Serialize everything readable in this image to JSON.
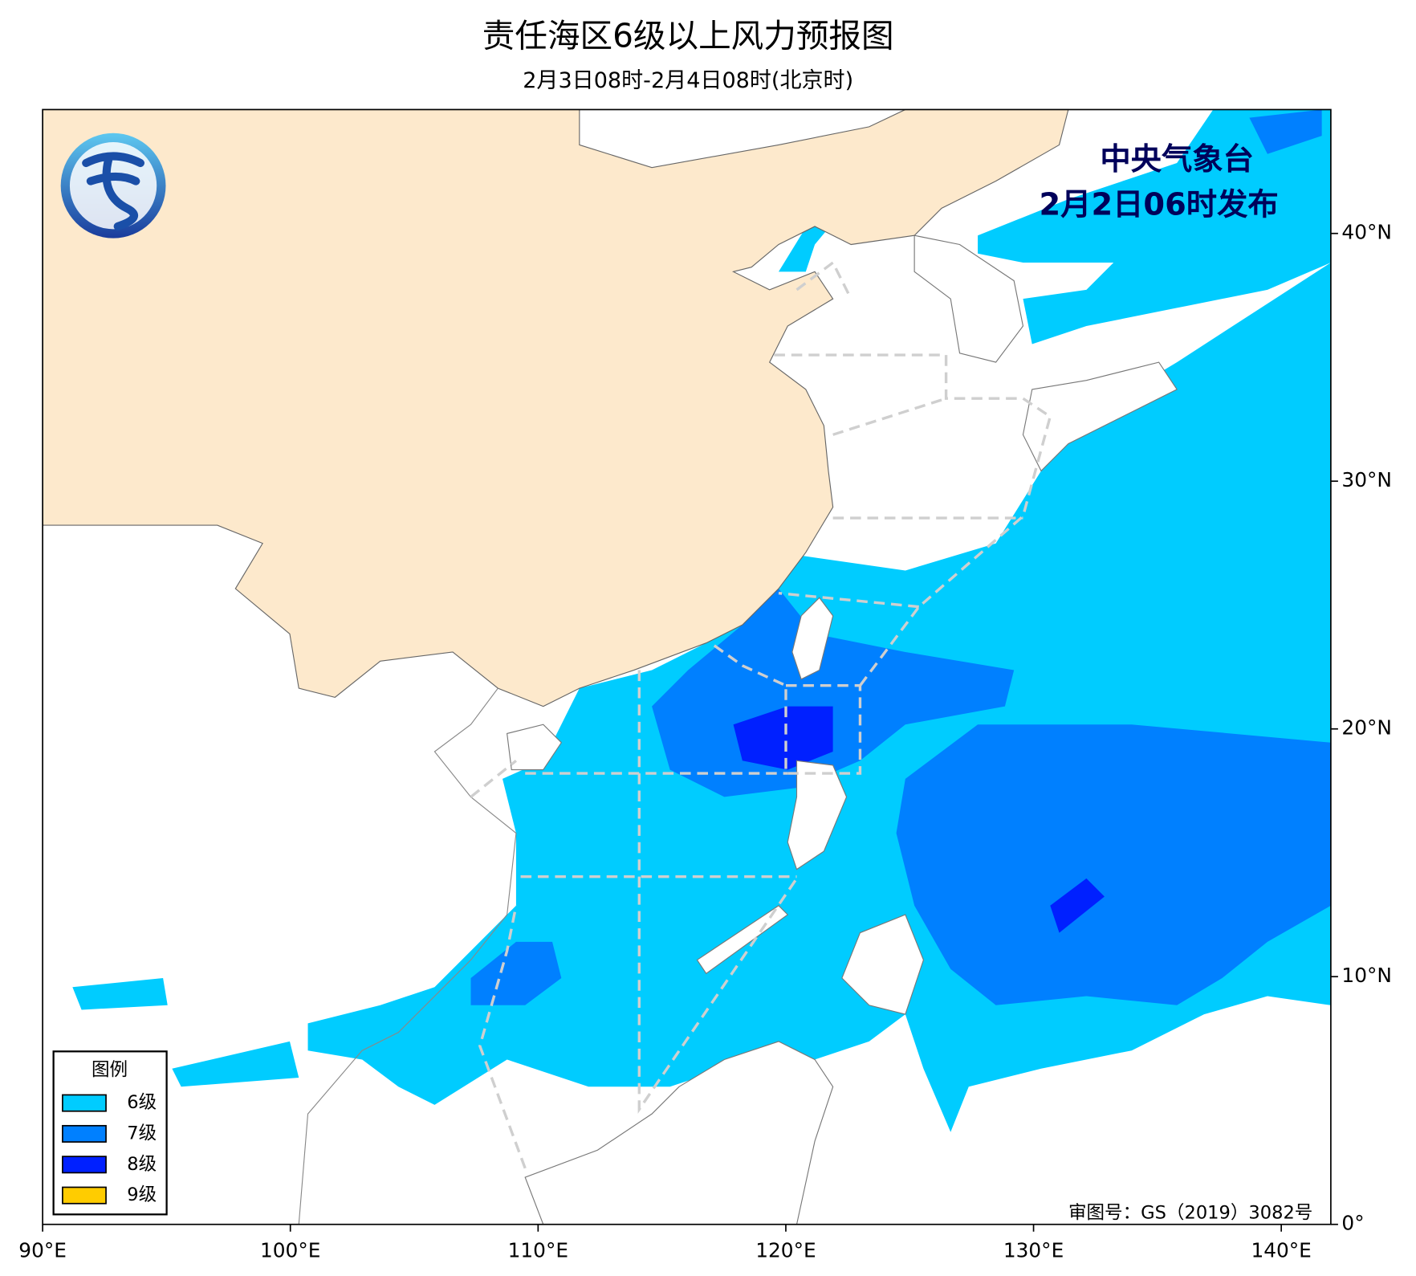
{
  "header": {
    "title": "责任海区6级以上风力预报图",
    "subtitle": "2月3日08时-2月4日08时(北京时)"
  },
  "publisher": {
    "name": "中央气象台",
    "issued": "2月2日06时发布"
  },
  "legend": {
    "title": "图例",
    "items": [
      {
        "name": "6级",
        "color": "#00ccff"
      },
      {
        "name": "7级",
        "color": "#0080ff"
      },
      {
        "name": "8级",
        "color": "#0020ff"
      },
      {
        "name": "9级",
        "color": "#ffcc00"
      }
    ]
  },
  "map": {
    "xlim": [
      90,
      142
    ],
    "ylim": [
      0,
      45
    ],
    "xticks": [
      {
        "value": 90,
        "label": "90°E"
      },
      {
        "value": 100,
        "label": "100°E"
      },
      {
        "value": 110,
        "label": "110°E"
      },
      {
        "value": 120,
        "label": "120°E"
      },
      {
        "value": 130,
        "label": "130°E"
      },
      {
        "value": 140,
        "label": "140°E"
      }
    ],
    "yticks": [
      {
        "value": 0,
        "label": "0°"
      },
      {
        "value": 10,
        "label": "10°N"
      },
      {
        "value": 20,
        "label": "20°N"
      },
      {
        "value": 30,
        "label": "30°N"
      },
      {
        "value": 40,
        "label": "40°N"
      }
    ]
  },
  "approval": "审图号：GS（2019）3082号"
}
